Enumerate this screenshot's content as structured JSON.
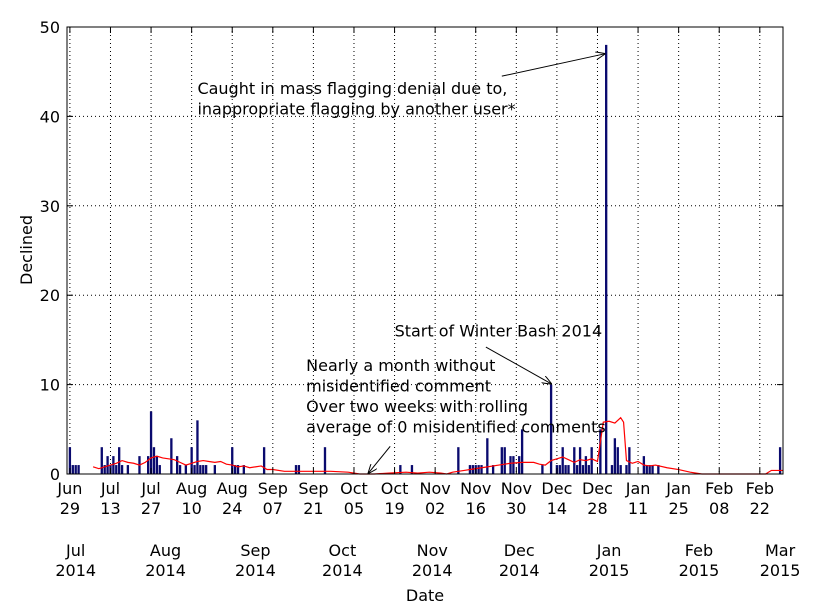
{
  "chart_data": {
    "type": "bar",
    "title": "",
    "xlabel": "Date",
    "ylabel": "Declined",
    "ylim": [
      0,
      50
    ],
    "yticks": [
      0,
      10,
      20,
      30,
      40,
      50
    ],
    "x_range_days": [
      -1,
      246
    ],
    "x_start_date": "2014-06-29",
    "grid": true,
    "week_ticks": [
      {
        "day": 0,
        "month": "Jun",
        "date": "29"
      },
      {
        "day": 14,
        "month": "Jul",
        "date": "13"
      },
      {
        "day": 28,
        "month": "Jul",
        "date": "27"
      },
      {
        "day": 42,
        "month": "Aug",
        "date": "10"
      },
      {
        "day": 56,
        "month": "Aug",
        "date": "24"
      },
      {
        "day": 70,
        "month": "Sep",
        "date": "07"
      },
      {
        "day": 84,
        "month": "Sep",
        "date": "21"
      },
      {
        "day": 98,
        "month": "Oct",
        "date": "05"
      },
      {
        "day": 112,
        "month": "Oct",
        "date": "19"
      },
      {
        "day": 126,
        "month": "Nov",
        "date": "02"
      },
      {
        "day": 140,
        "month": "Nov",
        "date": "16"
      },
      {
        "day": 154,
        "month": "Nov",
        "date": "30"
      },
      {
        "day": 168,
        "month": "Dec",
        "date": "14"
      },
      {
        "day": 182,
        "month": "Dec",
        "date": "28"
      },
      {
        "day": 196,
        "month": "Jan",
        "date": "11"
      },
      {
        "day": 210,
        "month": "Jan",
        "date": "25"
      },
      {
        "day": 224,
        "month": "Feb",
        "date": "08"
      },
      {
        "day": 238,
        "month": "Feb",
        "date": "22"
      }
    ],
    "month_ticks": [
      {
        "day": 2,
        "month": "Jul",
        "year": "2014"
      },
      {
        "day": 33,
        "month": "Aug",
        "year": "2014"
      },
      {
        "day": 64,
        "month": "Sep",
        "year": "2014"
      },
      {
        "day": 94,
        "month": "Oct",
        "year": "2014"
      },
      {
        "day": 125,
        "month": "Nov",
        "year": "2014"
      },
      {
        "day": 155,
        "month": "Dec",
        "year": "2014"
      },
      {
        "day": 186,
        "month": "Jan",
        "year": "2015"
      },
      {
        "day": 217,
        "month": "Feb",
        "year": "2015"
      },
      {
        "day": 245,
        "month": "Mar",
        "year": "2015"
      }
    ],
    "series": [
      {
        "name": "Declined",
        "kind": "bar",
        "color": "#0a0a6e",
        "points": [
          [
            0,
            3
          ],
          [
            1,
            1
          ],
          [
            2,
            1
          ],
          [
            3,
            1
          ],
          [
            11,
            3
          ],
          [
            12,
            1
          ],
          [
            13,
            2
          ],
          [
            14,
            1
          ],
          [
            15,
            2
          ],
          [
            16,
            1
          ],
          [
            17,
            3
          ],
          [
            18,
            1
          ],
          [
            20,
            1
          ],
          [
            24,
            2
          ],
          [
            27,
            2
          ],
          [
            28,
            7
          ],
          [
            29,
            3
          ],
          [
            30,
            2
          ],
          [
            31,
            1
          ],
          [
            35,
            4
          ],
          [
            37,
            2
          ],
          [
            38,
            1
          ],
          [
            40,
            1
          ],
          [
            42,
            3
          ],
          [
            43,
            1
          ],
          [
            44,
            6
          ],
          [
            45,
            1
          ],
          [
            46,
            1
          ],
          [
            47,
            1
          ],
          [
            50,
            1
          ],
          [
            56,
            3
          ],
          [
            57,
            1
          ],
          [
            58,
            1
          ],
          [
            60,
            1
          ],
          [
            67,
            3
          ],
          [
            78,
            1
          ],
          [
            79,
            1
          ],
          [
            88,
            3
          ],
          [
            114,
            1
          ],
          [
            118,
            1
          ],
          [
            134,
            3
          ],
          [
            138,
            1
          ],
          [
            139,
            1
          ],
          [
            140,
            1
          ],
          [
            141,
            1
          ],
          [
            142,
            1
          ],
          [
            144,
            4
          ],
          [
            146,
            1
          ],
          [
            149,
            3
          ],
          [
            150,
            3
          ],
          [
            152,
            2
          ],
          [
            153,
            2
          ],
          [
            155,
            2
          ],
          [
            156,
            5
          ],
          [
            163,
            1
          ],
          [
            166,
            10
          ],
          [
            168,
            1
          ],
          [
            169,
            1
          ],
          [
            170,
            3
          ],
          [
            171,
            1
          ],
          [
            172,
            1
          ],
          [
            174,
            3
          ],
          [
            175,
            1
          ],
          [
            176,
            3
          ],
          [
            177,
            1
          ],
          [
            178,
            2
          ],
          [
            179,
            1
          ],
          [
            180,
            3
          ],
          [
            183,
            5
          ],
          [
            185,
            48
          ],
          [
            187,
            1
          ],
          [
            188,
            4
          ],
          [
            189,
            3
          ],
          [
            190,
            1
          ],
          [
            192,
            1
          ],
          [
            193,
            3
          ],
          [
            198,
            2
          ],
          [
            199,
            1
          ],
          [
            200,
            1
          ],
          [
            201,
            1
          ],
          [
            203,
            1
          ],
          [
            245,
            3
          ]
        ]
      },
      {
        "name": "Rolling average",
        "kind": "line",
        "color": "#ff0000",
        "points": [
          [
            8,
            0.8
          ],
          [
            10,
            0.6
          ],
          [
            12,
            0.8
          ],
          [
            14,
            1.0
          ],
          [
            16,
            1.2
          ],
          [
            18,
            1.5
          ],
          [
            20,
            1.3
          ],
          [
            22,
            1.2
          ],
          [
            24,
            1.0
          ],
          [
            26,
            1.3
          ],
          [
            28,
            1.8
          ],
          [
            30,
            2.0
          ],
          [
            32,
            1.8
          ],
          [
            34,
            1.7
          ],
          [
            36,
            1.6
          ],
          [
            38,
            1.3
          ],
          [
            40,
            1.0
          ],
          [
            42,
            1.2
          ],
          [
            44,
            1.4
          ],
          [
            46,
            1.5
          ],
          [
            48,
            1.4
          ],
          [
            50,
            1.3
          ],
          [
            52,
            1.4
          ],
          [
            54,
            1.1
          ],
          [
            56,
            1.0
          ],
          [
            58,
            0.8
          ],
          [
            60,
            0.9
          ],
          [
            62,
            0.7
          ],
          [
            64,
            0.8
          ],
          [
            66,
            0.9
          ],
          [
            68,
            0.5
          ],
          [
            70,
            0.5
          ],
          [
            74,
            0.3
          ],
          [
            80,
            0.3
          ],
          [
            86,
            0.3
          ],
          [
            90,
            0.3
          ],
          [
            96,
            0.2
          ],
          [
            98,
            0.1
          ],
          [
            100,
            0
          ],
          [
            105,
            0
          ],
          [
            110,
            0.1
          ],
          [
            116,
            0.2
          ],
          [
            120,
            0.1
          ],
          [
            124,
            0.2
          ],
          [
            128,
            0.1
          ],
          [
            130,
            0
          ],
          [
            132,
            0.2
          ],
          [
            136,
            0.4
          ],
          [
            140,
            0.6
          ],
          [
            144,
            0.8
          ],
          [
            148,
            1.0
          ],
          [
            152,
            1.2
          ],
          [
            156,
            1.3
          ],
          [
            160,
            1.3
          ],
          [
            162,
            1.1
          ],
          [
            164,
            1.0
          ],
          [
            166,
            1.5
          ],
          [
            168,
            1.7
          ],
          [
            170,
            1.9
          ],
          [
            172,
            1.6
          ],
          [
            174,
            1.3
          ],
          [
            176,
            1.6
          ],
          [
            178,
            1.5
          ],
          [
            180,
            1.7
          ],
          [
            182,
            1.4
          ],
          [
            184,
            5.8
          ],
          [
            186,
            5.9
          ],
          [
            188,
            5.7
          ],
          [
            190,
            6.3
          ],
          [
            191,
            5.8
          ],
          [
            192,
            1.5
          ],
          [
            194,
            1.2
          ],
          [
            196,
            1.4
          ],
          [
            198,
            1.0
          ],
          [
            200,
            0.9
          ],
          [
            202,
            1.0
          ],
          [
            206,
            0.7
          ],
          [
            210,
            0.5
          ],
          [
            214,
            0.2
          ],
          [
            218,
            0
          ],
          [
            224,
            0
          ],
          [
            232,
            0
          ],
          [
            240,
            0
          ],
          [
            242,
            0.4
          ],
          [
            246,
            0.4
          ]
        ]
      }
    ],
    "annotations": [
      {
        "lines": [
          "Caught in mass flagging denial due to,",
          "inappropriate flagging by another user*"
        ],
        "text_day": 44,
        "text_y": 42.5,
        "arrow_from_day": 149,
        "arrow_from_y": 44.5,
        "arrow_to_day": 184.5,
        "arrow_to_y": 47
      },
      {
        "lines": [
          "Start of Winter Bash 2014"
        ],
        "text_day": 112,
        "text_y": 15.4,
        "arrow_from_day": 143.5,
        "arrow_from_y": 14.2,
        "arrow_to_day": 166,
        "arrow_to_y": 10.1
      },
      {
        "lines": [
          "Nearly a month without",
          "misidentified comment",
          "Over two weeks with rolling",
          "average of 0 misidentified comments"
        ],
        "text_day": 81.5,
        "text_y": 11.5,
        "arrow_from_day": 110.5,
        "arrow_from_y": 3.1,
        "arrow_to_day": 103,
        "arrow_to_y": 0.1
      }
    ]
  }
}
